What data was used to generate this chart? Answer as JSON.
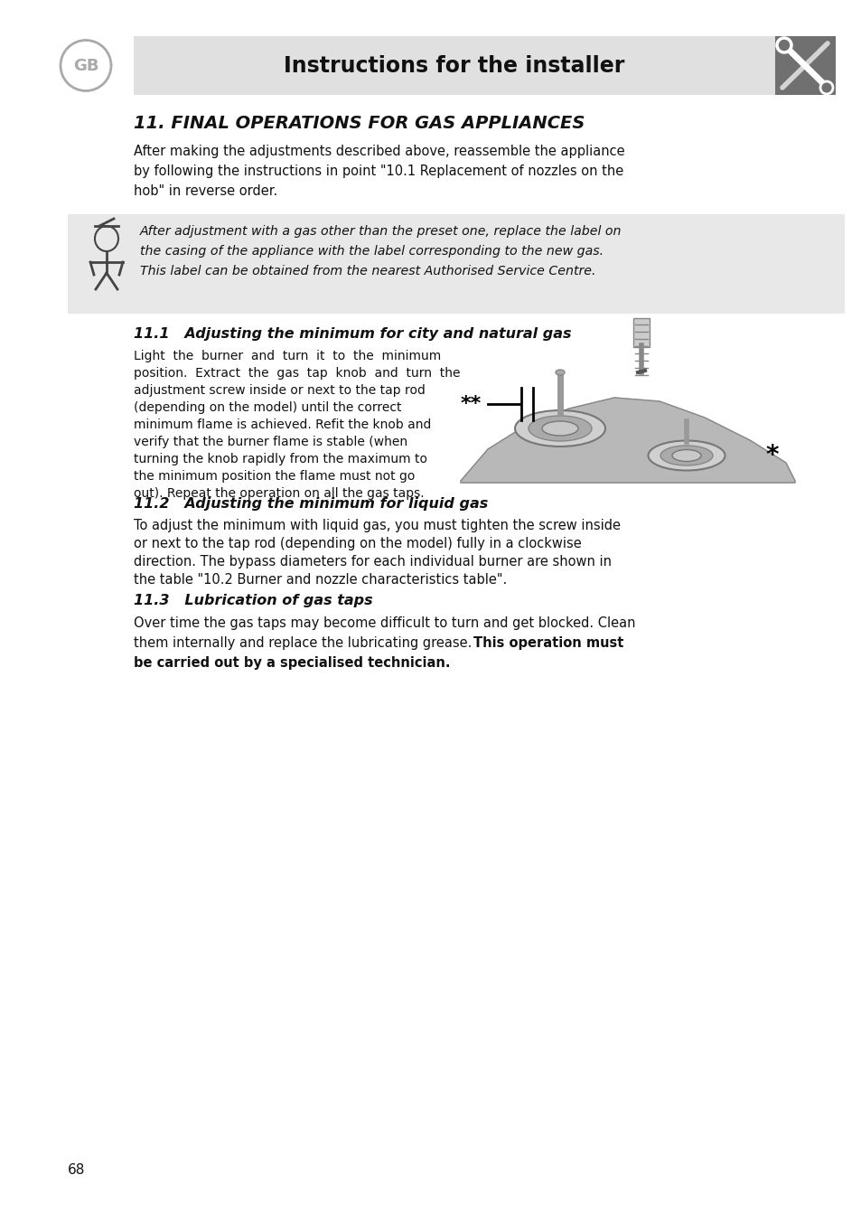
{
  "bg_color": "#ffffff",
  "header_bg": "#e0e0e0",
  "header_text": "Instructions for the installer",
  "gb_label": "GB",
  "tools_icon_bg": "#707070",
  "title_section": "11. FINAL OPERATIONS FOR GAS APPLIANCES",
  "callout_bg": "#e8e8e8",
  "text_color": "#111111",
  "page_number": "68",
  "p1_lines": [
    "After making the adjustments described above, reassemble the appliance",
    "by following the instructions in point \"10.1 Replacement of nozzles on the",
    "hob\" in reverse order."
  ],
  "callout_lines": [
    "After adjustment with a gas other than the preset one, replace the label on",
    "the casing of the appliance with the label corresponding to the new gas.",
    "This label can be obtained from the nearest Authorised Service Centre."
  ],
  "s11_1_title": "11.1   Adjusting the minimum for city and natural gas",
  "s11_1_lines": [
    "Light  the  burner  and  turn  it  to  the  minimum",
    "position.  Extract  the  gas  tap  knob  and  turn  the",
    "adjustment screw inside or next to the tap rod",
    "(depending on the model) until the correct",
    "minimum flame is achieved. Refit the knob and",
    "verify that the burner flame is stable (when",
    "turning the knob rapidly from the maximum to",
    "the minimum position the flame must not go",
    "out). Repeat the operation on all the gas taps."
  ],
  "s11_2_title": "11.2   Adjusting the minimum for liquid gas",
  "s11_2_lines": [
    "To adjust the minimum with liquid gas, you must tighten the screw inside",
    "or next to the tap rod (depending on the model) fully in a clockwise",
    "direction. The bypass diameters for each individual burner are shown in",
    "the table \"10.2 Burner and nozzle characteristics table\"."
  ],
  "s11_3_title": "11.3   Lubrication of gas taps",
  "s11_3_line1": "Over time the gas taps may become difficult to turn and get blocked. Clean",
  "s11_3_line2_normal": "them internally and replace the lubricating grease. ",
  "s11_3_line2_bold": "This operation must",
  "s11_3_line3_bold": "be carried out by a specialised technician."
}
